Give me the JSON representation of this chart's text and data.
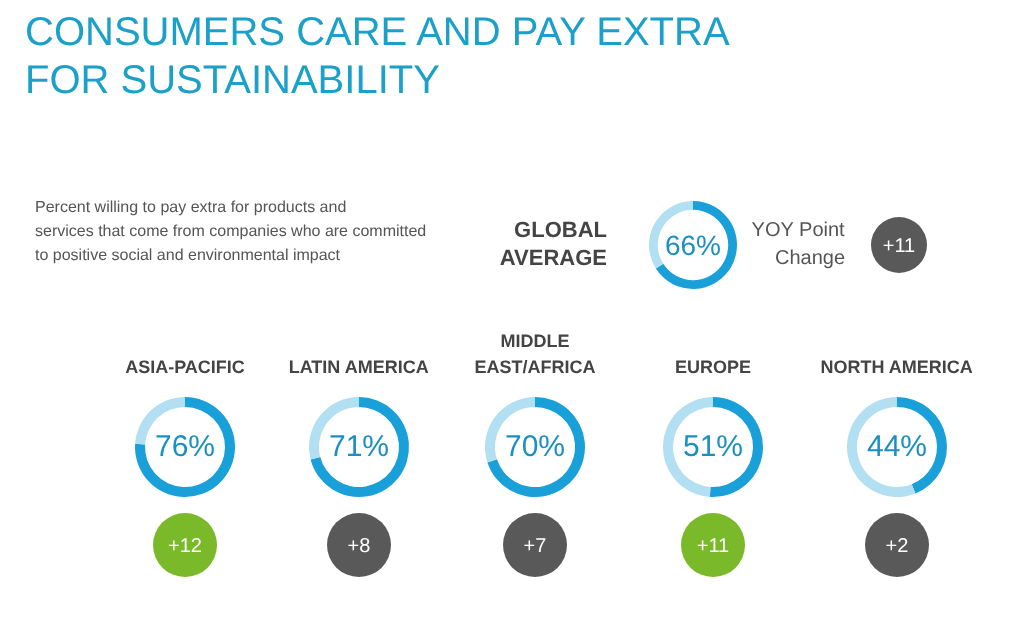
{
  "chart_data": [
    {
      "type": "other",
      "title": "CONSUMERS CARE AND PAY EXTRA FOR SUSTAINABILITY",
      "subtitle": "Percent willing to pay extra for products and services that come from companies who are committed to positive social and environmental impact"
    },
    {
      "type": "donut",
      "title": "GLOBAL AVERAGE",
      "categories": [
        null,
        null
      ],
      "values": [
        66,
        34
      ],
      "colors": [
        "#1aa0d8",
        "#b3dff2"
      ],
      "annotations": [
        "66%"
      ]
    },
    {
      "type": "other",
      "title": "YOY Point Change",
      "categories": [
        null
      ],
      "values": [
        11
      ],
      "value_labels": [
        "+11"
      ],
      "colors": [
        "#595959"
      ]
    },
    {
      "type": "donut",
      "title": "ASIA-PACIFIC",
      "categories": [
        null,
        null
      ],
      "values": [
        76,
        24
      ],
      "colors": [
        "#1aa0d8",
        "#b3dff2"
      ],
      "annotations": [
        "76%"
      ]
    },
    {
      "type": "donut",
      "title": "LATIN AMERICA",
      "categories": [
        null,
        null
      ],
      "values": [
        71,
        29
      ],
      "colors": [
        "#1aa0d8",
        "#b3dff2"
      ],
      "annotations": [
        "71%"
      ]
    },
    {
      "type": "donut",
      "title": "MIDDLE EAST/AFRICA",
      "categories": [
        null,
        null
      ],
      "values": [
        70,
        30
      ],
      "colors": [
        "#1aa0d8",
        "#b3dff2"
      ],
      "annotations": [
        "70%"
      ]
    },
    {
      "type": "donut",
      "title": "EUROPE",
      "categories": [
        null,
        null
      ],
      "values": [
        51,
        49
      ],
      "colors": [
        "#1aa0d8",
        "#b3dff2"
      ],
      "annotations": [
        "51%"
      ]
    },
    {
      "type": "donut",
      "title": "NORTH AMERICA",
      "categories": [
        null,
        null
      ],
      "values": [
        44,
        56
      ],
      "colors": [
        "#1aa0d8",
        "#b3dff2"
      ],
      "annotations": [
        "44%"
      ]
    },
    {
      "type": "other",
      "categories": [
        null,
        null,
        null,
        null,
        null
      ],
      "values": [
        12,
        8,
        7,
        11,
        2
      ],
      "value_labels": [
        "+12",
        "+8",
        "+7",
        "+11",
        "+2"
      ],
      "colors": [
        "#7ab929",
        "#595959",
        "#595959",
        "#7ab929",
        "#595959"
      ]
    }
  ]
}
